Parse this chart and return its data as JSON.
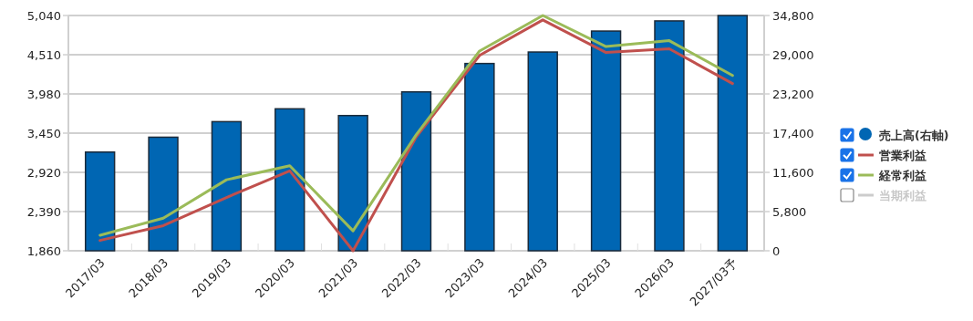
{
  "chart_data": {
    "type": "bar",
    "categories": [
      "2017/03",
      "2018/03",
      "2019/03",
      "2020/03",
      "2021/03",
      "2022/03",
      "2023/03",
      "2024/03",
      "2025/03",
      "2026/03",
      "2027/03予"
    ],
    "series": [
      {
        "name": "売上高(右軸)",
        "axis": "y2",
        "color": "#0066b3",
        "values": [
          14600,
          16800,
          19100,
          21000,
          20000,
          23500,
          27700,
          29400,
          32500,
          34000,
          34800
        ]
      },
      {
        "name": "営業利益",
        "type": "line",
        "color": "#c0504d",
        "values": [
          2000,
          2200,
          2580,
          2940,
          1860,
          3400,
          4500,
          4980,
          4540,
          4590,
          4120
        ]
      },
      {
        "name": "経常利益",
        "type": "line",
        "color": "#9bbb59",
        "values": [
          2070,
          2300,
          2820,
          3010,
          2130,
          3430,
          4560,
          5040,
          4620,
          4700,
          4230
        ]
      },
      {
        "name": "当期利益",
        "type": "line",
        "color": "#cccccc",
        "values": [
          null,
          null,
          null,
          null,
          null,
          null,
          null,
          null,
          null,
          null,
          null
        ]
      }
    ],
    "ylim": [
      1860,
      5040
    ],
    "yticks": [
      {
        "value": 1860,
        "label": "1,860"
      },
      {
        "value": 2390,
        "label": "2,390"
      },
      {
        "value": 2920,
        "label": "2,920"
      },
      {
        "value": 3450,
        "label": "3,450"
      },
      {
        "value": 3980,
        "label": "3,980"
      },
      {
        "value": 4510,
        "label": "4,510"
      },
      {
        "value": 5040,
        "label": "5,040"
      }
    ],
    "y2lim": [
      0,
      34800
    ],
    "y2ticks": [
      0,
      {
        "value": 5800,
        "label": "5,800"
      },
      {
        "value": 11600,
        "label": "11,600"
      },
      {
        "value": 17400,
        "label": "17,400"
      },
      {
        "value": 23200,
        "label": "23,200"
      },
      {
        "value": 29000,
        "label": "29,000"
      },
      {
        "value": 34800,
        "label": "34,800"
      }
    ],
    "grid": "y",
    "legend": "right"
  }
}
